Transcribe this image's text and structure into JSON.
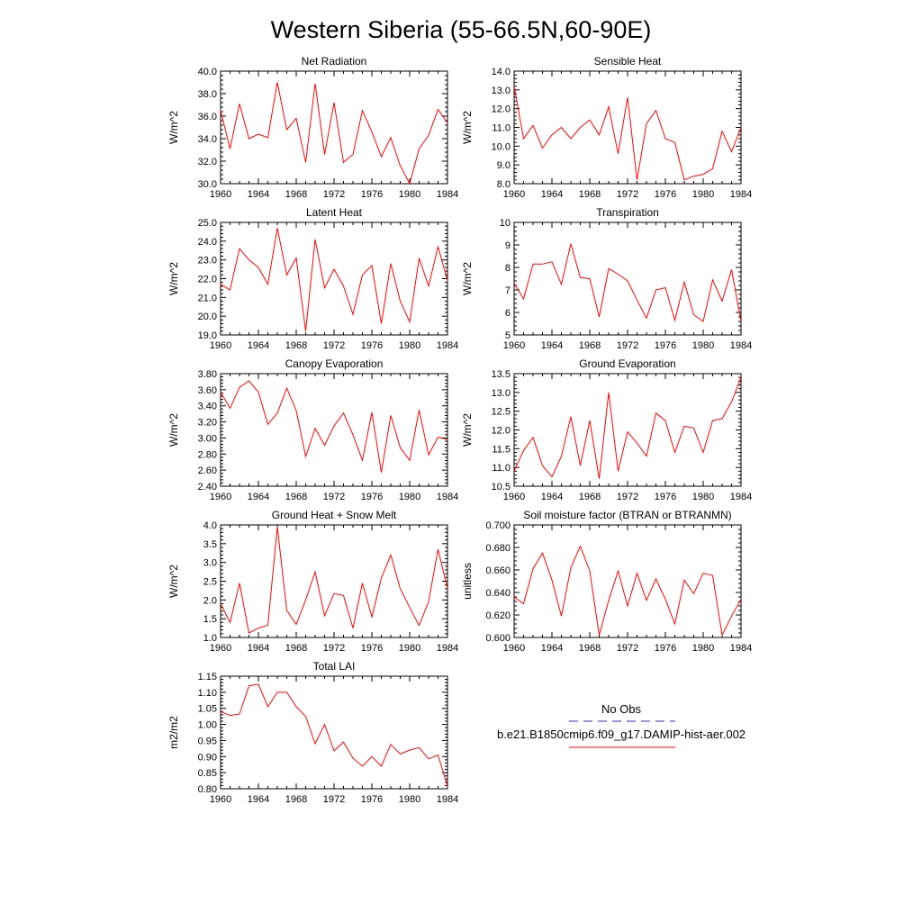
{
  "title": "Western Siberia (55-66.5N,60-90E)",
  "colors": {
    "model_line": "#ff0000",
    "obs_line": "#2b2bb8",
    "axis": "#000000"
  },
  "legend": {
    "obs_label": "No Obs",
    "model_label": "b.e21.B1850cmip6.f09_g17.DAMIP-hist-aer.002"
  },
  "chart_data": [
    {
      "type": "line",
      "title": "Net Radiation",
      "ylabel": "W/m^2",
      "ylim": [
        30.0,
        40.0
      ],
      "yticks": [
        "30.0",
        "32.0",
        "34.0",
        "36.0",
        "38.0",
        "40.0"
      ],
      "xticks": [
        "1960",
        "1964",
        "1968",
        "1972",
        "1976",
        "1980",
        "1984"
      ],
      "x": [
        1960,
        1961,
        1962,
        1963,
        1964,
        1965,
        1966,
        1967,
        1968,
        1969,
        1970,
        1971,
        1972,
        1973,
        1974,
        1975,
        1976,
        1977,
        1978,
        1979,
        1980,
        1981,
        1982,
        1983,
        1984
      ],
      "values": [
        36.5,
        33.1,
        37.1,
        34.0,
        34.4,
        34.1,
        39.0,
        34.8,
        35.8,
        31.9,
        38.9,
        32.6,
        37.2,
        31.9,
        32.6,
        36.5,
        34.6,
        32.4,
        34.1,
        31.6,
        30.0,
        33.1,
        34.3,
        36.6,
        35.4
      ]
    },
    {
      "type": "line",
      "title": "Sensible Heat",
      "ylabel": "W/m^2",
      "ylim": [
        8.0,
        14.0
      ],
      "yticks": [
        "8.0",
        "9.0",
        "10.0",
        "11.0",
        "12.0",
        "13.0",
        "14.0"
      ],
      "xticks": [
        "1960",
        "1964",
        "1968",
        "1972",
        "1976",
        "1980",
        "1984"
      ],
      "x": [
        1960,
        1961,
        1962,
        1963,
        1964,
        1965,
        1966,
        1967,
        1968,
        1969,
        1970,
        1971,
        1972,
        1973,
        1974,
        1975,
        1976,
        1977,
        1978,
        1979,
        1980,
        1981,
        1982,
        1983,
        1984
      ],
      "values": [
        13.2,
        10.4,
        11.1,
        9.9,
        10.6,
        11.0,
        10.4,
        11.0,
        11.4,
        10.6,
        12.1,
        9.6,
        12.6,
        8.2,
        11.2,
        11.9,
        10.4,
        10.2,
        8.2,
        8.4,
        8.5,
        8.8,
        10.8,
        9.7,
        11.0
      ]
    },
    {
      "type": "line",
      "title": "Latent Heat",
      "ylabel": "W/m^2",
      "ylim": [
        19.0,
        25.0
      ],
      "yticks": [
        "19.0",
        "20.0",
        "21.0",
        "22.0",
        "23.0",
        "24.0",
        "25.0"
      ],
      "xticks": [
        "1960",
        "1964",
        "1968",
        "1972",
        "1976",
        "1980",
        "1984"
      ],
      "x": [
        1960,
        1961,
        1962,
        1963,
        1964,
        1965,
        1966,
        1967,
        1968,
        1969,
        1970,
        1971,
        1972,
        1973,
        1974,
        1975,
        1976,
        1977,
        1978,
        1979,
        1980,
        1981,
        1982,
        1983,
        1984
      ],
      "values": [
        21.7,
        21.4,
        23.6,
        23.0,
        22.6,
        21.7,
        24.7,
        22.2,
        23.1,
        19.2,
        24.1,
        21.5,
        22.5,
        21.6,
        20.1,
        22.2,
        22.7,
        19.6,
        22.8,
        20.8,
        19.7,
        23.1,
        21.6,
        23.7,
        21.9
      ]
    },
    {
      "type": "line",
      "title": "Transpiration",
      "ylabel": "W/m^2",
      "ylim": [
        5,
        10
      ],
      "yticks": [
        "5",
        "6",
        "7",
        "8",
        "9",
        "10"
      ],
      "xticks": [
        "1960",
        "1964",
        "1968",
        "1972",
        "1976",
        "1980",
        "1984"
      ],
      "x": [
        1960,
        1961,
        1962,
        1963,
        1964,
        1965,
        1966,
        1967,
        1968,
        1969,
        1970,
        1971,
        1972,
        1973,
        1974,
        1975,
        1976,
        1977,
        1978,
        1979,
        1980,
        1981,
        1982,
        1983,
        1984
      ],
      "values": [
        7.3,
        6.6,
        8.15,
        8.15,
        8.25,
        7.25,
        9.05,
        7.55,
        7.5,
        5.8,
        7.95,
        7.7,
        7.4,
        6.55,
        5.75,
        7.0,
        7.1,
        5.65,
        7.35,
        5.9,
        5.6,
        7.45,
        6.5,
        7.9,
        5.6
      ]
    },
    {
      "type": "line",
      "title": "Canopy Evaporation",
      "ylabel": "W/m^2",
      "ylim": [
        2.4,
        3.8
      ],
      "yticks": [
        "2.40",
        "2.60",
        "2.80",
        "3.00",
        "3.20",
        "3.40",
        "3.60",
        "3.80"
      ],
      "xticks": [
        "1960",
        "1964",
        "1968",
        "1972",
        "1976",
        "1980",
        "1984"
      ],
      "x": [
        1960,
        1961,
        1962,
        1963,
        1964,
        1965,
        1966,
        1967,
        1968,
        1969,
        1970,
        1971,
        1972,
        1973,
        1974,
        1975,
        1976,
        1977,
        1978,
        1979,
        1980,
        1981,
        1982,
        1983,
        1984
      ],
      "values": [
        3.57,
        3.37,
        3.63,
        3.71,
        3.57,
        3.17,
        3.31,
        3.62,
        3.34,
        2.77,
        3.12,
        2.91,
        3.15,
        3.31,
        3.04,
        2.72,
        3.32,
        2.57,
        3.28,
        2.88,
        2.72,
        3.35,
        2.79,
        3.01,
        2.98
      ]
    },
    {
      "type": "line",
      "title": "Ground Evaporation",
      "ylabel": "W/m^2",
      "ylim": [
        10.5,
        13.5
      ],
      "yticks": [
        "10.5",
        "11.0",
        "11.5",
        "12.0",
        "12.5",
        "13.0",
        "13.5"
      ],
      "xticks": [
        "1960",
        "1964",
        "1968",
        "1972",
        "1976",
        "1980",
        "1984"
      ],
      "x": [
        1960,
        1961,
        1962,
        1963,
        1964,
        1965,
        1966,
        1967,
        1968,
        1969,
        1970,
        1971,
        1972,
        1973,
        1974,
        1975,
        1976,
        1977,
        1978,
        1979,
        1980,
        1981,
        1982,
        1983,
        1984
      ],
      "values": [
        10.9,
        11.45,
        11.8,
        11.05,
        10.75,
        11.3,
        12.35,
        11.05,
        12.25,
        10.7,
        13.0,
        10.9,
        11.95,
        11.65,
        11.3,
        12.45,
        12.25,
        11.4,
        12.1,
        12.05,
        11.4,
        12.25,
        12.3,
        12.75,
        13.4
      ]
    },
    {
      "type": "line",
      "title": "Ground Heat + Snow Melt",
      "ylabel": "W/m^2",
      "ylim": [
        1.0,
        4.0
      ],
      "yticks": [
        "1.0",
        "1.5",
        "2.0",
        "2.5",
        "3.0",
        "3.5",
        "4.0"
      ],
      "xticks": [
        "1960",
        "1964",
        "1968",
        "1972",
        "1976",
        "1980",
        "1984"
      ],
      "x": [
        1960,
        1961,
        1962,
        1963,
        1964,
        1965,
        1966,
        1967,
        1968,
        1969,
        1970,
        1971,
        1972,
        1973,
        1974,
        1975,
        1976,
        1977,
        1978,
        1979,
        1980,
        1981,
        1982,
        1983,
        1984
      ],
      "values": [
        1.9,
        1.4,
        2.45,
        1.12,
        1.25,
        1.33,
        3.95,
        1.72,
        1.35,
        2.0,
        2.75,
        1.58,
        2.17,
        2.12,
        1.25,
        2.45,
        1.55,
        2.58,
        3.2,
        2.3,
        1.8,
        1.32,
        1.95,
        3.35,
        2.3
      ]
    },
    {
      "type": "line",
      "title": "Soil moisture factor (BTRAN or BTRANMN)",
      "ylabel": "unitless",
      "ylim": [
        0.6,
        0.7
      ],
      "yticks": [
        "0.600",
        "0.620",
        "0.640",
        "0.660",
        "0.680",
        "0.700"
      ],
      "xticks": [
        "1960",
        "1964",
        "1968",
        "1972",
        "1976",
        "1980",
        "1984"
      ],
      "x": [
        1960,
        1961,
        1962,
        1963,
        1964,
        1965,
        1966,
        1967,
        1968,
        1969,
        1970,
        1971,
        1972,
        1973,
        1974,
        1975,
        1976,
        1977,
        1978,
        1979,
        1980,
        1981,
        1982,
        1983,
        1984
      ],
      "values": [
        0.636,
        0.63,
        0.661,
        0.675,
        0.651,
        0.619,
        0.662,
        0.681,
        0.659,
        0.602,
        0.633,
        0.659,
        0.628,
        0.657,
        0.633,
        0.652,
        0.634,
        0.612,
        0.651,
        0.639,
        0.657,
        0.655,
        0.602,
        0.619,
        0.634
      ]
    },
    {
      "type": "line",
      "title": "Total LAI",
      "ylabel": "m2/m2",
      "ylim": [
        0.8,
        1.15
      ],
      "yticks": [
        "0.80",
        "0.85",
        "0.90",
        "0.95",
        "1.00",
        "1.05",
        "1.10",
        "1.15"
      ],
      "xticks": [
        "1960",
        "1964",
        "1968",
        "1972",
        "1976",
        "1980",
        "1984"
      ],
      "x": [
        1960,
        1961,
        1962,
        1963,
        1964,
        1965,
        1966,
        1967,
        1968,
        1969,
        1970,
        1971,
        1972,
        1973,
        1974,
        1975,
        1976,
        1977,
        1978,
        1979,
        1980,
        1981,
        1982,
        1983,
        1984
      ],
      "values": [
        1.04,
        1.028,
        1.032,
        1.12,
        1.125,
        1.055,
        1.1,
        1.1,
        1.055,
        1.025,
        0.94,
        1.0,
        0.918,
        0.945,
        0.895,
        0.87,
        0.9,
        0.87,
        0.938,
        0.908,
        0.92,
        0.928,
        0.893,
        0.905,
        0.808
      ]
    }
  ]
}
